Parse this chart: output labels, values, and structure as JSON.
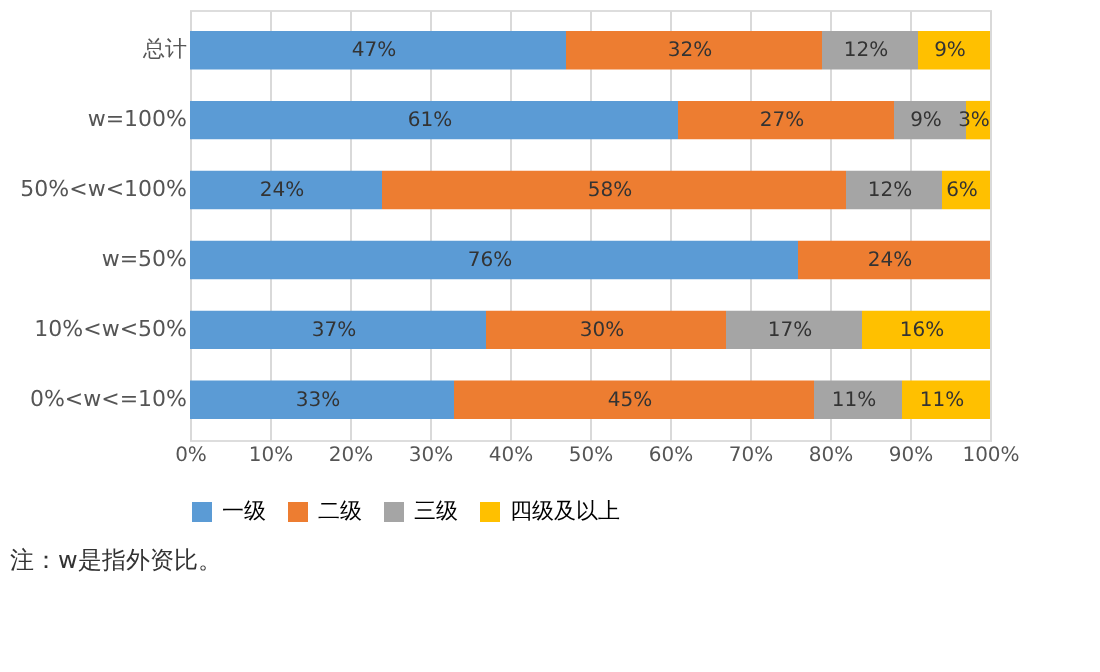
{
  "chart_data": {
    "type": "bar",
    "orientation": "horizontal",
    "stacked": true,
    "categories": [
      "总计",
      "w=100%",
      "50%<w<100%",
      "w=50%",
      "10%<w<50%",
      "0%<w<=10%"
    ],
    "series": [
      {
        "name": "一级",
        "color": "#5b9bd5",
        "values": [
          47,
          61,
          24,
          76,
          37,
          33
        ],
        "value_labels": [
          "47%",
          "61%",
          "24%",
          "76%",
          "37%",
          "33%"
        ]
      },
      {
        "name": "二级",
        "color": "#ed7d31",
        "values": [
          32,
          27,
          58,
          24,
          30,
          45
        ],
        "value_labels": [
          "32%",
          "27%",
          "58%",
          "24%",
          "30%",
          "45%"
        ]
      },
      {
        "name": "三级",
        "color": "#a5a5a5",
        "values": [
          12,
          9,
          12,
          null,
          17,
          11
        ],
        "value_labels": [
          "12%",
          "9%",
          "12%",
          null,
          "17%",
          "11%"
        ]
      },
      {
        "name": "四级及以上",
        "color": "#ffc000",
        "values": [
          9,
          3,
          6,
          null,
          16,
          11
        ],
        "value_labels": [
          "9%",
          "3%",
          "6%",
          null,
          "16%",
          "11%"
        ]
      }
    ],
    "xlim": [
      0,
      100
    ],
    "xticks": [
      {
        "value": 0,
        "label": "0%"
      },
      {
        "value": 10,
        "label": "10%"
      },
      {
        "value": 20,
        "label": "20%"
      },
      {
        "value": 30,
        "label": "30%"
      },
      {
        "value": 40,
        "label": "40%"
      },
      {
        "value": 50,
        "label": "50%"
      },
      {
        "value": 60,
        "label": "60%"
      },
      {
        "value": 70,
        "label": "70%"
      },
      {
        "value": 80,
        "label": "80%"
      },
      {
        "value": 90,
        "label": "90%"
      },
      {
        "value": 100,
        "label": "100%"
      }
    ],
    "grid": "x",
    "legend": "bottom",
    "annotations": [
      "注：w是指外资比。"
    ]
  }
}
